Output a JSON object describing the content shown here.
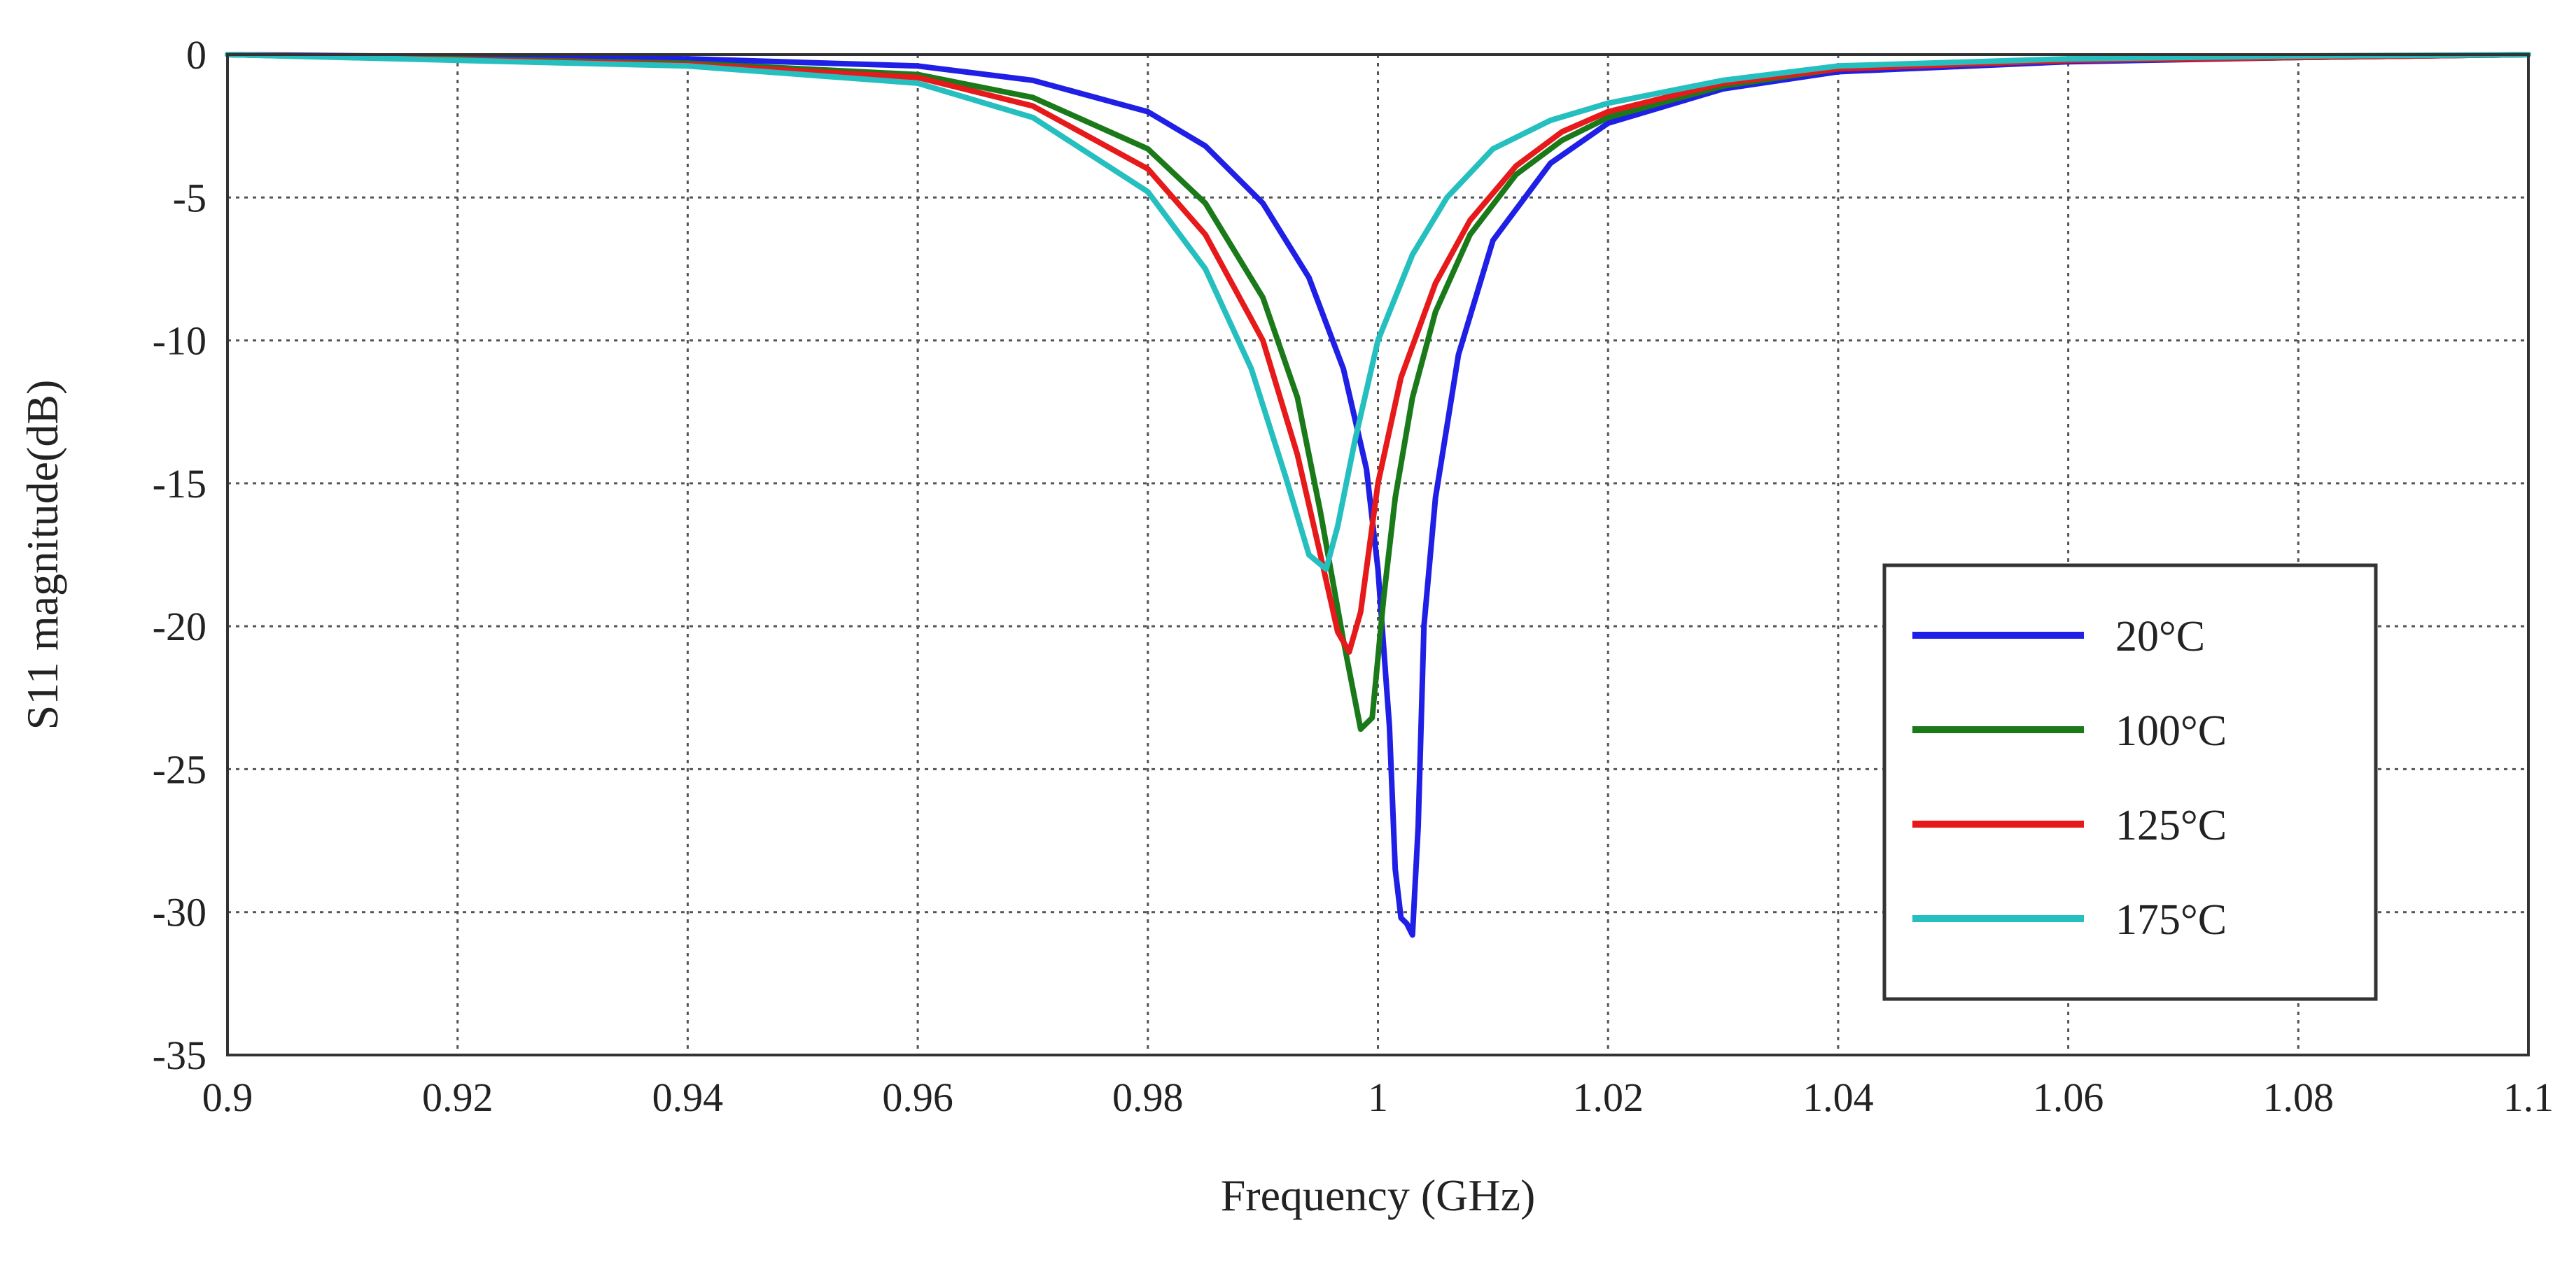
{
  "chart_data": {
    "type": "line",
    "title": "",
    "xlabel": "Frequency (GHz)",
    "ylabel": "S11 magnitude(dB)",
    "xlim": [
      0.9,
      1.1
    ],
    "ylim": [
      -35,
      0
    ],
    "grid": true,
    "legend_position": "right",
    "x_ticks": [
      {
        "value": 0.9,
        "label": "0.9"
      },
      {
        "value": 0.92,
        "label": "0.92"
      },
      {
        "value": 0.94,
        "label": "0.94"
      },
      {
        "value": 0.96,
        "label": "0.96"
      },
      {
        "value": 0.98,
        "label": "0.98"
      },
      {
        "value": 1.0,
        "label": "1"
      },
      {
        "value": 1.02,
        "label": "1.02"
      },
      {
        "value": 1.04,
        "label": "1.04"
      },
      {
        "value": 1.06,
        "label": "1.06"
      },
      {
        "value": 1.08,
        "label": "1.08"
      },
      {
        "value": 1.1,
        "label": "1.1"
      }
    ],
    "y_ticks": [
      {
        "value": 0,
        "label": "0"
      },
      {
        "value": -5,
        "label": "-5"
      },
      {
        "value": -10,
        "label": "-10"
      },
      {
        "value": -15,
        "label": "-15"
      },
      {
        "value": -20,
        "label": "-20"
      },
      {
        "value": -25,
        "label": "-25"
      },
      {
        "value": -30,
        "label": "-30"
      },
      {
        "value": -35,
        "label": "-35"
      }
    ],
    "series": [
      {
        "name": "20°C",
        "color": "#1f1fe6",
        "x": [
          0.9,
          0.94,
          0.96,
          0.97,
          0.98,
          0.985,
          0.99,
          0.994,
          0.997,
          0.999,
          1.0,
          1.001,
          1.0015,
          1.002,
          1.0025,
          1.003,
          1.0035,
          1.004,
          1.005,
          1.007,
          1.01,
          1.015,
          1.02,
          1.03,
          1.04,
          1.06,
          1.08,
          1.1
        ],
        "values": [
          0,
          -0.15,
          -0.4,
          -0.9,
          -2.0,
          -3.2,
          -5.2,
          -7.8,
          -11.0,
          -14.5,
          -18.0,
          -23.5,
          -28.5,
          -30.2,
          -30.4,
          -30.8,
          -27.0,
          -20.0,
          -15.5,
          -10.5,
          -6.5,
          -3.8,
          -2.4,
          -1.2,
          -0.6,
          -0.25,
          -0.1,
          0
        ]
      },
      {
        "name": "100°C",
        "color": "#1a7a1a",
        "x": [
          0.9,
          0.94,
          0.96,
          0.97,
          0.98,
          0.985,
          0.99,
          0.993,
          0.995,
          0.997,
          0.9985,
          0.9995,
          1.0005,
          1.0015,
          1.003,
          1.005,
          1.008,
          1.012,
          1.016,
          1.02,
          1.03,
          1.04,
          1.06,
          1.08,
          1.1
        ],
        "values": [
          0,
          -0.3,
          -0.7,
          -1.5,
          -3.3,
          -5.2,
          -8.5,
          -12.0,
          -16.0,
          -20.5,
          -23.6,
          -23.2,
          -19.0,
          -15.5,
          -12.0,
          -9.0,
          -6.3,
          -4.2,
          -3.0,
          -2.2,
          -1.1,
          -0.5,
          -0.2,
          -0.1,
          0
        ]
      },
      {
        "name": "125°C",
        "color": "#e61a1a",
        "x": [
          0.9,
          0.94,
          0.96,
          0.97,
          0.98,
          0.985,
          0.99,
          0.993,
          0.995,
          0.9965,
          0.9975,
          0.9985,
          1.0,
          1.002,
          1.005,
          1.008,
          1.012,
          1.016,
          1.02,
          1.03,
          1.04,
          1.06,
          1.08,
          1.1
        ],
        "values": [
          0,
          -0.35,
          -0.8,
          -1.8,
          -4.0,
          -6.3,
          -10.0,
          -14.0,
          -17.5,
          -20.2,
          -20.9,
          -19.5,
          -15.0,
          -11.3,
          -8.0,
          -5.8,
          -3.9,
          -2.7,
          -2.0,
          -1.0,
          -0.5,
          -0.2,
          -0.1,
          0
        ]
      },
      {
        "name": "175°C",
        "color": "#26bfbf",
        "x": [
          0.9,
          0.94,
          0.96,
          0.97,
          0.98,
          0.985,
          0.989,
          0.992,
          0.994,
          0.9955,
          0.9965,
          0.998,
          1.0,
          1.003,
          1.006,
          1.01,
          1.015,
          1.02,
          1.03,
          1.04,
          1.06,
          1.08,
          1.1
        ],
        "values": [
          0,
          -0.4,
          -1.0,
          -2.2,
          -4.8,
          -7.5,
          -11.0,
          -14.8,
          -17.5,
          -18.0,
          -16.5,
          -13.5,
          -10.0,
          -7.0,
          -5.0,
          -3.3,
          -2.3,
          -1.7,
          -0.9,
          -0.4,
          -0.15,
          -0.05,
          0
        ]
      }
    ]
  }
}
